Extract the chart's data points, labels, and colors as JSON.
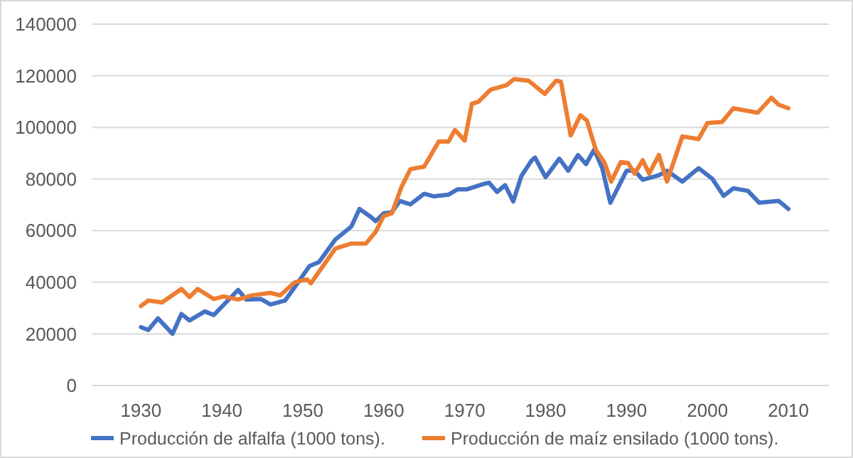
{
  "chart_data": {
    "type": "line",
    "xlim": [
      1924,
      2015
    ],
    "xticks": [
      1930,
      1940,
      1950,
      1960,
      1970,
      1980,
      1990,
      2000,
      2010
    ],
    "ylim": [
      0,
      140000
    ],
    "yticks": [
      0,
      20000,
      40000,
      60000,
      80000,
      100000,
      120000,
      140000
    ],
    "grid": "y",
    "legend": "bottom",
    "line_style": "solid",
    "marker": "none",
    "series": [
      {
        "name": "Producción de alfalfa (1000 tons).",
        "color": "#4472c4",
        "x": [
          1930,
          1930.9,
          1932.1,
          1933.9,
          1935,
          1936,
          1937.9,
          1939,
          1942,
          1943,
          1944.8,
          1946,
          1947.8,
          1949.3,
          1950.8,
          1952,
          1954,
          1956,
          1957,
          1958.4,
          1959,
          1960,
          1961,
          1962,
          1963.3,
          1965,
          1966.2,
          1968,
          1969.1,
          1970.3,
          1972.3,
          1973,
          1974,
          1975,
          1976,
          1977,
          1978.3,
          1978.7,
          1980,
          1981.7,
          1982.8,
          1984,
          1985,
          1986,
          1987,
          1988,
          1990,
          1991,
          1992,
          1994,
          1995,
          1996.9,
          1998.9,
          2000.6,
          2002,
          2003.2,
          2005,
          2006.4,
          2008.8,
          2010
        ],
        "values": [
          22600,
          21500,
          26000,
          20000,
          27700,
          25200,
          28700,
          27300,
          37000,
          33300,
          33500,
          31400,
          32900,
          39400,
          46200,
          47800,
          56500,
          61600,
          68400,
          65300,
          63700,
          66700,
          67100,
          71500,
          70200,
          74300,
          73300,
          73900,
          76000,
          76000,
          78000,
          78600,
          75000,
          77600,
          71300,
          81100,
          87300,
          88300,
          80700,
          87900,
          83200,
          89300,
          85800,
          91400,
          84200,
          70800,
          83200,
          83200,
          79700,
          81500,
          83200,
          79000,
          84200,
          80100,
          73500,
          76400,
          75400,
          70800,
          71500,
          68400
        ]
      },
      {
        "name": "Producción de maíz ensilado (1000 tons).",
        "color": "#ed7d31",
        "x": [
          1930,
          1930.9,
          1932.6,
          1935,
          1936,
          1937,
          1939,
          1940.2,
          1942,
          1943.7,
          1946,
          1947.2,
          1949,
          1950.5,
          1951,
          1954,
          1956,
          1957.8,
          1959,
          1960,
          1961,
          1962.2,
          1963.3,
          1965,
          1966.8,
          1968,
          1968.8,
          1970,
          1970.9,
          1971.7,
          1973.2,
          1975.2,
          1976.1,
          1977.9,
          1979.9,
          1981.3,
          1981.9,
          1983.1,
          1984.3,
          1985.1,
          1986.2,
          1987.3,
          1988.1,
          1989.3,
          1990.2,
          1991,
          1992,
          1992.8,
          1994,
          1995,
          1996.9,
          1998.9,
          2000,
          2001.8,
          2003.2,
          2006.2,
          2007.9,
          2008.8,
          2010
        ],
        "values": [
          30800,
          32900,
          32200,
          37400,
          34300,
          37400,
          33500,
          34500,
          33300,
          34900,
          35900,
          34900,
          40000,
          41100,
          39600,
          53000,
          55000,
          55000,
          59500,
          65700,
          66700,
          77000,
          83800,
          84800,
          94500,
          94500,
          99000,
          94900,
          109200,
          109900,
          114600,
          116400,
          118700,
          118100,
          113000,
          118100,
          117700,
          96900,
          104700,
          102700,
          91400,
          86200,
          79000,
          86600,
          86200,
          82100,
          87300,
          82100,
          89300,
          79000,
          96500,
          95500,
          101700,
          102100,
          107400,
          105700,
          111500,
          108800,
          107400
        ]
      }
    ]
  }
}
